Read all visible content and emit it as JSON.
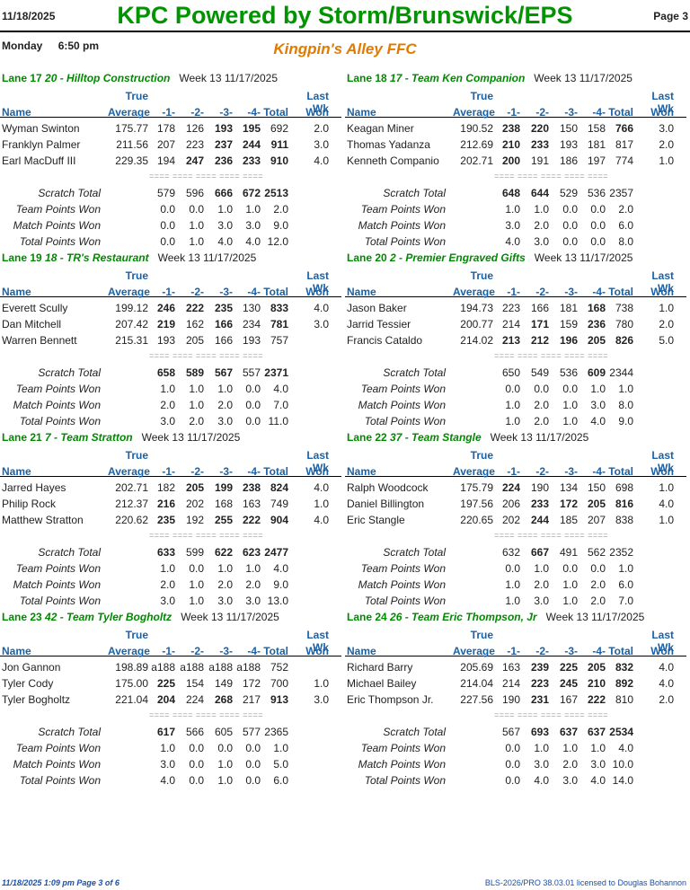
{
  "header": {
    "date": "11/18/2025",
    "title": "KPC Powered by Storm/Brunswick/EPS",
    "page": "Page 3"
  },
  "sub": {
    "day": "Monday",
    "time": "6:50 pm",
    "center": "Kingpin's Alley FFC"
  },
  "columns": {
    "true": "True",
    "lastwk": "Last Wk",
    "name": "Name",
    "average": "Average",
    "g1": "-1-",
    "g2": "-2-",
    "g3": "-3-",
    "g4": "-4-",
    "total": "Total",
    "won": "Won",
    "sep": "==== ==== ==== ==== ===="
  },
  "labels": {
    "scratch": "Scratch Total",
    "tpw": "Team Points Won",
    "mpw": "Match Points Won",
    "totpw": "Total Points Won"
  },
  "lanes": [
    {
      "lane": "Lane 17",
      "team": "20 - Hilltop Construction",
      "week": "Week 13  11/17/2025",
      "players": [
        {
          "name": "Wyman Swinton",
          "avg": "175.77",
          "g": [
            "178",
            "126",
            "193",
            "195"
          ],
          "b": [
            false,
            false,
            true,
            true
          ],
          "total": "692",
          "tb": false,
          "won": "2.0"
        },
        {
          "name": "Franklyn Palmer",
          "avg": "211.56",
          "g": [
            "207",
            "223",
            "237",
            "244"
          ],
          "b": [
            false,
            false,
            true,
            true
          ],
          "total": "911",
          "tb": true,
          "won": "3.0"
        },
        {
          "name": "Earl MacDuff III",
          "avg": "229.35",
          "g": [
            "194",
            "247",
            "236",
            "233"
          ],
          "b": [
            false,
            true,
            true,
            true
          ],
          "total": "910",
          "tb": true,
          "won": "4.0"
        }
      ],
      "scratch": [
        "579",
        "596",
        "666",
        "672",
        "2513"
      ],
      "sb": [
        false,
        false,
        true,
        true,
        true
      ],
      "tpw": [
        "0.0",
        "0.0",
        "1.0",
        "1.0",
        "2.0"
      ],
      "mpw": [
        "0.0",
        "1.0",
        "3.0",
        "3.0",
        "9.0"
      ],
      "tot": [
        "0.0",
        "1.0",
        "4.0",
        "4.0",
        "12.0"
      ]
    },
    {
      "lane": "Lane 18",
      "team": "17 - Team Ken Companion",
      "week": "Week 13  11/17/2025",
      "players": [
        {
          "name": "Keagan Miner",
          "avg": "190.52",
          "g": [
            "238",
            "220",
            "150",
            "158"
          ],
          "b": [
            true,
            true,
            false,
            false
          ],
          "total": "766",
          "tb": true,
          "won": "3.0"
        },
        {
          "name": "Thomas Yadanza",
          "avg": "212.69",
          "g": [
            "210",
            "233",
            "193",
            "181"
          ],
          "b": [
            true,
            true,
            false,
            false
          ],
          "total": "817",
          "tb": false,
          "won": "2.0"
        },
        {
          "name": "Kenneth Companio",
          "avg": "202.71",
          "g": [
            "200",
            "191",
            "186",
            "197"
          ],
          "b": [
            true,
            false,
            false,
            false
          ],
          "total": "774",
          "tb": false,
          "won": "1.0"
        }
      ],
      "scratch": [
        "648",
        "644",
        "529",
        "536",
        "2357"
      ],
      "sb": [
        true,
        true,
        false,
        false,
        false
      ],
      "tpw": [
        "1.0",
        "1.0",
        "0.0",
        "0.0",
        "2.0"
      ],
      "mpw": [
        "3.0",
        "2.0",
        "0.0",
        "0.0",
        "6.0"
      ],
      "tot": [
        "4.0",
        "3.0",
        "0.0",
        "0.0",
        "8.0"
      ]
    },
    {
      "lane": "Lane 19",
      "team": "18 - TR's Restaurant",
      "week": "Week 13  11/17/2025",
      "players": [
        {
          "name": "Everett Scully",
          "avg": "199.12",
          "g": [
            "246",
            "222",
            "235",
            "130"
          ],
          "b": [
            true,
            true,
            true,
            false
          ],
          "total": "833",
          "tb": true,
          "won": "4.0"
        },
        {
          "name": "Dan Mitchell",
          "avg": "207.42",
          "g": [
            "219",
            "162",
            "166",
            "234"
          ],
          "b": [
            true,
            false,
            true,
            false
          ],
          "total": "781",
          "tb": true,
          "won": "3.0"
        },
        {
          "name": "Warren Bennett",
          "avg": "215.31",
          "g": [
            "193",
            "205",
            "166",
            "193"
          ],
          "b": [
            false,
            false,
            false,
            false
          ],
          "total": "757",
          "tb": false,
          "won": ""
        }
      ],
      "scratch": [
        "658",
        "589",
        "567",
        "557",
        "2371"
      ],
      "sb": [
        true,
        true,
        true,
        false,
        true
      ],
      "tpw": [
        "1.0",
        "1.0",
        "1.0",
        "0.0",
        "4.0"
      ],
      "mpw": [
        "2.0",
        "1.0",
        "2.0",
        "0.0",
        "7.0"
      ],
      "tot": [
        "3.0",
        "2.0",
        "3.0",
        "0.0",
        "11.0"
      ]
    },
    {
      "lane": "Lane 20",
      "team": "2 - Premier Engraved Gifts",
      "week": "Week 13  11/17/2025",
      "players": [
        {
          "name": "Jason Baker",
          "avg": "194.73",
          "g": [
            "223",
            "166",
            "181",
            "168"
          ],
          "b": [
            false,
            false,
            false,
            true
          ],
          "total": "738",
          "tb": false,
          "won": "1.0"
        },
        {
          "name": "Jarrid Tessier",
          "avg": "200.77",
          "g": [
            "214",
            "171",
            "159",
            "236"
          ],
          "b": [
            false,
            true,
            false,
            true
          ],
          "total": "780",
          "tb": false,
          "won": "2.0"
        },
        {
          "name": "Francis Cataldo",
          "avg": "214.02",
          "g": [
            "213",
            "212",
            "196",
            "205"
          ],
          "b": [
            true,
            true,
            true,
            true
          ],
          "total": "826",
          "tb": true,
          "won": "5.0"
        }
      ],
      "scratch": [
        "650",
        "549",
        "536",
        "609",
        "2344"
      ],
      "sb": [
        false,
        false,
        false,
        true,
        false
      ],
      "tpw": [
        "0.0",
        "0.0",
        "0.0",
        "1.0",
        "1.0"
      ],
      "mpw": [
        "1.0",
        "2.0",
        "1.0",
        "3.0",
        "8.0"
      ],
      "tot": [
        "1.0",
        "2.0",
        "1.0",
        "4.0",
        "9.0"
      ]
    },
    {
      "lane": "Lane 21",
      "team": "7 - Team Stratton",
      "week": "Week 13  11/17/2025",
      "players": [
        {
          "name": "Jarred Hayes",
          "avg": "202.71",
          "g": [
            "182",
            "205",
            "199",
            "238"
          ],
          "b": [
            false,
            true,
            true,
            true
          ],
          "total": "824",
          "tb": true,
          "won": "4.0"
        },
        {
          "name": "Philip Rock",
          "avg": "212.37",
          "g": [
            "216",
            "202",
            "168",
            "163"
          ],
          "b": [
            true,
            false,
            false,
            false
          ],
          "total": "749",
          "tb": false,
          "won": "1.0"
        },
        {
          "name": "Matthew Stratton",
          "avg": "220.62",
          "g": [
            "235",
            "192",
            "255",
            "222"
          ],
          "b": [
            true,
            false,
            true,
            true
          ],
          "total": "904",
          "tb": true,
          "won": "4.0"
        }
      ],
      "scratch": [
        "633",
        "599",
        "622",
        "623",
        "2477"
      ],
      "sb": [
        true,
        false,
        true,
        true,
        true
      ],
      "tpw": [
        "1.0",
        "0.0",
        "1.0",
        "1.0",
        "4.0"
      ],
      "mpw": [
        "2.0",
        "1.0",
        "2.0",
        "2.0",
        "9.0"
      ],
      "tot": [
        "3.0",
        "1.0",
        "3.0",
        "3.0",
        "13.0"
      ]
    },
    {
      "lane": "Lane 22",
      "team": "37 - Team Stangle",
      "week": "Week 13  11/17/2025",
      "players": [
        {
          "name": "Ralph Woodcock",
          "avg": "175.79",
          "g": [
            "224",
            "190",
            "134",
            "150"
          ],
          "b": [
            true,
            false,
            false,
            false
          ],
          "total": "698",
          "tb": false,
          "won": "1.0"
        },
        {
          "name": "Daniel Billington",
          "avg": "197.56",
          "g": [
            "206",
            "233",
            "172",
            "205"
          ],
          "b": [
            false,
            true,
            true,
            true
          ],
          "total": "816",
          "tb": true,
          "won": "4.0"
        },
        {
          "name": "Eric Stangle",
          "avg": "220.65",
          "g": [
            "202",
            "244",
            "185",
            "207"
          ],
          "b": [
            false,
            true,
            false,
            false
          ],
          "total": "838",
          "tb": false,
          "won": "1.0"
        }
      ],
      "scratch": [
        "632",
        "667",
        "491",
        "562",
        "2352"
      ],
      "sb": [
        false,
        true,
        false,
        false,
        false
      ],
      "tpw": [
        "0.0",
        "1.0",
        "0.0",
        "0.0",
        "1.0"
      ],
      "mpw": [
        "1.0",
        "2.0",
        "1.0",
        "2.0",
        "6.0"
      ],
      "tot": [
        "1.0",
        "3.0",
        "1.0",
        "2.0",
        "7.0"
      ]
    },
    {
      "lane": "Lane 23",
      "team": "42 - Team Tyler Bogholtz",
      "week": "Week 13  11/17/2025",
      "players": [
        {
          "name": "Jon Gannon",
          "avg": "198.89",
          "g": [
            "a188",
            "a188",
            "a188",
            "a188"
          ],
          "b": [
            false,
            false,
            false,
            false
          ],
          "total": "752",
          "tb": false,
          "won": ""
        },
        {
          "name": "Tyler Cody",
          "avg": "175.00",
          "g": [
            "225",
            "154",
            "149",
            "172"
          ],
          "b": [
            true,
            false,
            false,
            false
          ],
          "total": "700",
          "tb": false,
          "won": "1.0"
        },
        {
          "name": "Tyler Bogholtz",
          "avg": "221.04",
          "g": [
            "204",
            "224",
            "268",
            "217"
          ],
          "b": [
            true,
            false,
            true,
            false
          ],
          "total": "913",
          "tb": true,
          "won": "3.0"
        }
      ],
      "scratch": [
        "617",
        "566",
        "605",
        "577",
        "2365"
      ],
      "sb": [
        true,
        false,
        false,
        false,
        false
      ],
      "tpw": [
        "1.0",
        "0.0",
        "0.0",
        "0.0",
        "1.0"
      ],
      "mpw": [
        "3.0",
        "0.0",
        "1.0",
        "0.0",
        "5.0"
      ],
      "tot": [
        "4.0",
        "0.0",
        "1.0",
        "0.0",
        "6.0"
      ]
    },
    {
      "lane": "Lane 24",
      "team": "26 - Team Eric Thompson, Jr",
      "week": "Week 13  11/17/2025",
      "players": [
        {
          "name": "Richard Barry",
          "avg": "205.69",
          "g": [
            "163",
            "239",
            "225",
            "205"
          ],
          "b": [
            false,
            true,
            true,
            true
          ],
          "total": "832",
          "tb": true,
          "won": "4.0"
        },
        {
          "name": "Michael Bailey",
          "avg": "214.04",
          "g": [
            "214",
            "223",
            "245",
            "210"
          ],
          "b": [
            false,
            true,
            true,
            true
          ],
          "total": "892",
          "tb": true,
          "won": "4.0"
        },
        {
          "name": "Eric Thompson Jr.",
          "avg": "227.56",
          "g": [
            "190",
            "231",
            "167",
            "222"
          ],
          "b": [
            false,
            true,
            false,
            true
          ],
          "total": "810",
          "tb": false,
          "won": "2.0"
        }
      ],
      "scratch": [
        "567",
        "693",
        "637",
        "637",
        "2534"
      ],
      "sb": [
        false,
        true,
        true,
        true,
        true
      ],
      "tpw": [
        "0.0",
        "1.0",
        "1.0",
        "1.0",
        "4.0"
      ],
      "mpw": [
        "0.0",
        "3.0",
        "2.0",
        "3.0",
        "10.0"
      ],
      "tot": [
        "0.0",
        "4.0",
        "3.0",
        "4.0",
        "14.0"
      ]
    }
  ],
  "footer": {
    "left": "11/18/2025  1:09 pm   Page 3 of 6",
    "right": "BLS-2026/PRO 38.03.01 licensed to Douglas Bohannon"
  }
}
